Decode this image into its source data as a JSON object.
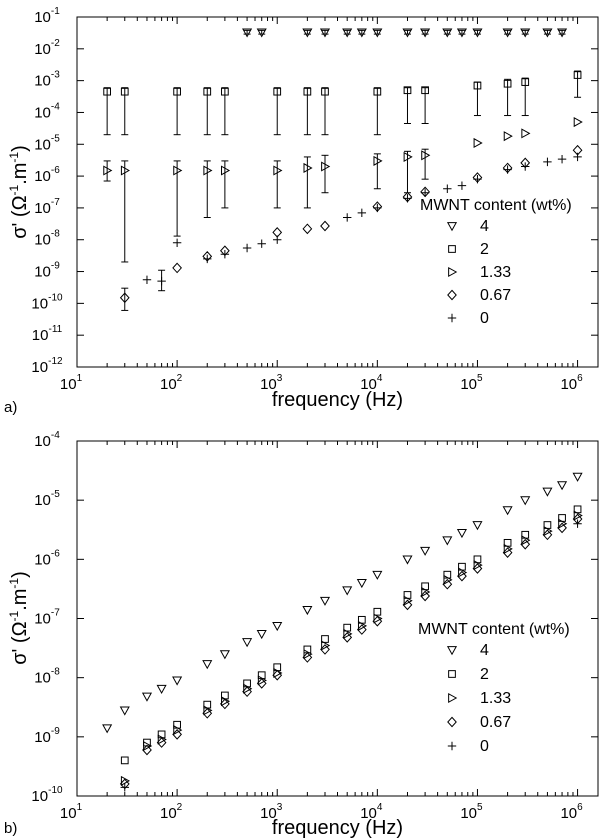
{
  "chart_data": [
    {
      "panel_label": "a)",
      "type": "scatter",
      "xlabel": "frequency (Hz)",
      "ylabel_main": "σ' (Ω",
      "ylabel_sup1": "-1",
      "ylabel_mid": ".m",
      "ylabel_sup2": "-1",
      "ylabel_end": ")",
      "x_scale": "log",
      "y_scale": "log",
      "xlim": [
        10,
        1600000
      ],
      "ylim": [
        1e-12,
        0.1
      ],
      "x_tick_exponents": [
        1,
        2,
        3,
        4,
        5,
        6
      ],
      "y_tick_exponents": [
        -12,
        -11,
        -10,
        -9,
        -8,
        -7,
        -6,
        -5,
        -4,
        -3,
        -2,
        -1
      ],
      "tick_base": "10",
      "legend_title": "MWNT content (wt%)",
      "legend_position": "right",
      "series": [
        {
          "name": "4",
          "marker": "triangle-down",
          "points": [
            [
              500,
              0.033
            ],
            [
              700,
              0.033
            ],
            [
              2000,
              0.033
            ],
            [
              3000,
              0.033
            ],
            [
              5000,
              0.033
            ],
            [
              7000,
              0.033
            ],
            [
              10000,
              0.033
            ],
            [
              20000,
              0.033
            ],
            [
              30000,
              0.033
            ],
            [
              50000,
              0.033
            ],
            [
              70000,
              0.033
            ],
            [
              100000,
              0.033
            ],
            [
              200000,
              0.033
            ],
            [
              300000,
              0.033
            ],
            [
              500000,
              0.033
            ],
            [
              700000,
              0.033
            ]
          ],
          "errors": [
            [
              0.029,
              0.038
            ],
            [
              0.029,
              0.038
            ],
            [
              0.029,
              0.038
            ],
            [
              0.029,
              0.038
            ],
            [
              0.029,
              0.038
            ],
            [
              0.029,
              0.038
            ],
            [
              0.029,
              0.038
            ],
            [
              0.029,
              0.038
            ],
            [
              0.029,
              0.038
            ],
            [
              0.029,
              0.038
            ],
            [
              0.029,
              0.038
            ],
            [
              0.029,
              0.038
            ],
            [
              0.029,
              0.038
            ],
            [
              0.029,
              0.038
            ],
            [
              0.029,
              0.038
            ],
            [
              0.029,
              0.038
            ]
          ]
        },
        {
          "name": "2",
          "marker": "square",
          "points": [
            [
              20,
              0.00045
            ],
            [
              30,
              0.00045
            ],
            [
              100,
              0.00045
            ],
            [
              200,
              0.00045
            ],
            [
              300,
              0.00045
            ],
            [
              1000,
              0.00045
            ],
            [
              2000,
              0.00045
            ],
            [
              3000,
              0.00045
            ],
            [
              10000,
              0.00045
            ],
            [
              20000,
              0.0005
            ],
            [
              30000,
              0.0005
            ],
            [
              100000,
              0.0007
            ],
            [
              200000,
              0.0008
            ],
            [
              300000,
              0.0009
            ],
            [
              1000000,
              0.0015
            ]
          ],
          "errors": [
            [
              2e-05,
              0.0006
            ],
            [
              2e-05,
              0.0006
            ],
            [
              2e-05,
              0.0006
            ],
            [
              2e-05,
              0.0006
            ],
            [
              2e-05,
              0.0006
            ],
            [
              2e-05,
              0.0006
            ],
            [
              2e-05,
              0.0006
            ],
            [
              2e-05,
              0.0006
            ],
            [
              2e-05,
              0.0006
            ],
            [
              4.5e-05,
              0.0006
            ],
            [
              4.5e-05,
              0.0006
            ],
            [
              8e-05,
              0.0009
            ],
            [
              8e-05,
              0.0011
            ],
            [
              8e-05,
              0.0012
            ],
            [
              0.0003,
              0.002
            ]
          ]
        },
        {
          "name": "1.33",
          "marker": "triangle-right",
          "points": [
            [
              20,
              1.5e-06
            ],
            [
              30,
              1.5e-06
            ],
            [
              100,
              1.5e-06
            ],
            [
              200,
              1.5e-06
            ],
            [
              300,
              1.5e-06
            ],
            [
              1000,
              1.5e-06
            ],
            [
              2000,
              1.8e-06
            ],
            [
              3000,
              2e-06
            ],
            [
              10000,
              3e-06
            ],
            [
              20000,
              4e-06
            ],
            [
              30000,
              4.5e-06
            ],
            [
              100000,
              1.1e-05
            ],
            [
              200000,
              1.8e-05
            ],
            [
              300000,
              2.2e-05
            ],
            [
              1000000,
              5e-05
            ]
          ],
          "errors": [
            [
              7e-07,
              3e-06
            ],
            [
              2e-09,
              3e-06
            ],
            [
              1.3e-08,
              3e-06
            ],
            [
              5e-08,
              3e-06
            ],
            [
              1e-07,
              3e-06
            ],
            [
              1e-07,
              3e-06
            ],
            [
              1e-07,
              4e-06
            ],
            [
              3e-07,
              4.5e-06
            ],
            [
              4e-07,
              5e-06
            ],
            [
              3e-07,
              6e-06
            ],
            [
              8e-07,
              7e-06
            ],
            null,
            null,
            null,
            null
          ]
        },
        {
          "name": "0.67",
          "marker": "diamond",
          "points": [
            [
              30,
              1.5e-10
            ],
            [
              100,
              1.3e-09
            ],
            [
              200,
              3e-09
            ],
            [
              300,
              4.5e-09
            ],
            [
              1000,
              1.7e-08
            ],
            [
              2000,
              2.2e-08
            ],
            [
              3000,
              2.7e-08
            ],
            [
              10000,
              1.1e-07
            ],
            [
              20000,
              2.2e-07
            ],
            [
              30000,
              3.2e-07
            ],
            [
              100000,
              9e-07
            ],
            [
              200000,
              1.8e-06
            ],
            [
              300000,
              2.6e-06
            ],
            [
              1000000,
              6.5e-06
            ]
          ],
          "errors": [
            [
              6e-11,
              3e-10
            ],
            null,
            null,
            null,
            null,
            null,
            null,
            null,
            null,
            null,
            null,
            null,
            null,
            null
          ]
        },
        {
          "name": "0",
          "marker": "plus",
          "points": [
            [
              50,
              5.5e-10
            ],
            [
              70,
              5e-10
            ],
            [
              100,
              8e-09
            ],
            [
              200,
              2.5e-09
            ],
            [
              300,
              3.5e-09
            ],
            [
              500,
              5.5e-09
            ],
            [
              700,
              7.5e-09
            ],
            [
              1000,
              1e-08
            ],
            [
              5000,
              5e-08
            ],
            [
              7000,
              7e-08
            ],
            [
              10000,
              1e-07
            ],
            [
              20000,
              2e-07
            ],
            [
              30000,
              3e-07
            ],
            [
              50000,
              4e-07
            ],
            [
              70000,
              5e-07
            ],
            [
              100000,
              8e-07
            ],
            [
              200000,
              1.6e-06
            ],
            [
              300000,
              2e-06
            ],
            [
              500000,
              2.8e-06
            ],
            [
              700000,
              3.4e-06
            ],
            [
              1000000,
              4e-06
            ]
          ],
          "errors": [
            null,
            [
              2.5e-10,
              1.1e-09
            ],
            null,
            null,
            null,
            null,
            null,
            null,
            null,
            null,
            null,
            null,
            null,
            null,
            null,
            null,
            null,
            null,
            null,
            null,
            null
          ]
        }
      ]
    },
    {
      "panel_label": "b)",
      "type": "scatter",
      "xlabel": "frequency (Hz)",
      "ylabel_main": "σ' (Ω",
      "ylabel_sup1": "-1",
      "ylabel_mid": ".m",
      "ylabel_sup2": "-1",
      "ylabel_end": ")",
      "x_scale": "log",
      "y_scale": "log",
      "xlim": [
        10,
        1600000
      ],
      "ylim": [
        1e-10,
        0.0001
      ],
      "x_tick_exponents": [
        1,
        2,
        3,
        4,
        5,
        6
      ],
      "y_tick_exponents": [
        -10,
        -9,
        -8,
        -7,
        -6,
        -5,
        -4
      ],
      "tick_base": "10",
      "legend_title": "MWNT content (wt%)",
      "legend_position": "right",
      "series": [
        {
          "name": "4",
          "marker": "triangle-down",
          "points": [
            [
              20,
              1.4e-09
            ],
            [
              30,
              2.8e-09
            ],
            [
              50,
              4.8e-09
            ],
            [
              70,
              6.5e-09
            ],
            [
              100,
              9e-09
            ],
            [
              200,
              1.7e-08
            ],
            [
              300,
              2.5e-08
            ],
            [
              500,
              4e-08
            ],
            [
              700,
              5.5e-08
            ],
            [
              1000,
              7.5e-08
            ],
            [
              2000,
              1.4e-07
            ],
            [
              3000,
              2e-07
            ],
            [
              5000,
              3e-07
            ],
            [
              7000,
              4e-07
            ],
            [
              10000,
              5.5e-07
            ],
            [
              20000,
              1e-06
            ],
            [
              30000,
              1.4e-06
            ],
            [
              50000,
              2.1e-06
            ],
            [
              70000,
              2.8e-06
            ],
            [
              100000,
              3.8e-06
            ],
            [
              200000,
              6.8e-06
            ],
            [
              300000,
              1e-05
            ],
            [
              500000,
              1.4e-05
            ],
            [
              700000,
              1.8e-05
            ],
            [
              1000000,
              2.5e-05
            ]
          ]
        },
        {
          "name": "2",
          "marker": "square",
          "points": [
            [
              30,
              4e-10
            ],
            [
              50,
              8e-10
            ],
            [
              70,
              1.1e-09
            ],
            [
              100,
              1.6e-09
            ],
            [
              200,
              3.5e-09
            ],
            [
              300,
              5e-09
            ],
            [
              500,
              8e-09
            ],
            [
              700,
              1.1e-08
            ],
            [
              1000,
              1.5e-08
            ],
            [
              2000,
              3e-08
            ],
            [
              3000,
              4.5e-08
            ],
            [
              5000,
              7e-08
            ],
            [
              7000,
              9.5e-08
            ],
            [
              10000,
              1.3e-07
            ],
            [
              20000,
              2.5e-07
            ],
            [
              30000,
              3.5e-07
            ],
            [
              50000,
              5.5e-07
            ],
            [
              70000,
              7.5e-07
            ],
            [
              100000,
              1e-06
            ],
            [
              200000,
              1.9e-06
            ],
            [
              300000,
              2.6e-06
            ],
            [
              500000,
              3.8e-06
            ],
            [
              700000,
              5e-06
            ],
            [
              1000000,
              7e-06
            ]
          ]
        },
        {
          "name": "1.33",
          "marker": "triangle-right",
          "points": [
            [
              30,
              1.8e-10
            ],
            [
              50,
              7e-10
            ],
            [
              70,
              9e-10
            ],
            [
              100,
              1.3e-09
            ],
            [
              200,
              2.8e-09
            ],
            [
              300,
              4e-09
            ],
            [
              500,
              6.5e-09
            ],
            [
              700,
              9e-09
            ],
            [
              1000,
              1.2e-08
            ],
            [
              2000,
              2.5e-08
            ],
            [
              3000,
              3.5e-08
            ],
            [
              5000,
              5.5e-08
            ],
            [
              7000,
              7.5e-08
            ],
            [
              10000,
              1e-07
            ],
            [
              20000,
              2e-07
            ],
            [
              30000,
              2.8e-07
            ],
            [
              50000,
              4.5e-07
            ],
            [
              70000,
              6e-07
            ],
            [
              100000,
              8e-07
            ],
            [
              200000,
              1.5e-06
            ],
            [
              300000,
              2.1e-06
            ],
            [
              500000,
              3e-06
            ],
            [
              700000,
              4e-06
            ],
            [
              1000000,
              5.5e-06
            ]
          ]
        },
        {
          "name": "0.67",
          "marker": "diamond",
          "points": [
            [
              30,
              1.6e-10
            ],
            [
              50,
              6e-10
            ],
            [
              70,
              8e-10
            ],
            [
              100,
              1.1e-09
            ],
            [
              200,
              2.5e-09
            ],
            [
              300,
              3.6e-09
            ],
            [
              500,
              5.8e-09
            ],
            [
              700,
              8e-09
            ],
            [
              1000,
              1.1e-08
            ],
            [
              2000,
              2.2e-08
            ],
            [
              3000,
              3e-08
            ],
            [
              5000,
              4.8e-08
            ],
            [
              7000,
              6.5e-08
            ],
            [
              10000,
              9e-08
            ],
            [
              20000,
              1.7e-07
            ],
            [
              30000,
              2.4e-07
            ],
            [
              50000,
              3.8e-07
            ],
            [
              70000,
              5.2e-07
            ],
            [
              100000,
              7e-07
            ],
            [
              200000,
              1.3e-06
            ],
            [
              300000,
              1.8e-06
            ],
            [
              500000,
              2.6e-06
            ],
            [
              700000,
              3.4e-06
            ],
            [
              1000000,
              4.8e-06
            ]
          ]
        },
        {
          "name": "0",
          "marker": "plus",
          "points": [
            [
              30,
              1.4e-10
            ],
            [
              1000000,
              4e-06
            ]
          ]
        }
      ]
    }
  ]
}
